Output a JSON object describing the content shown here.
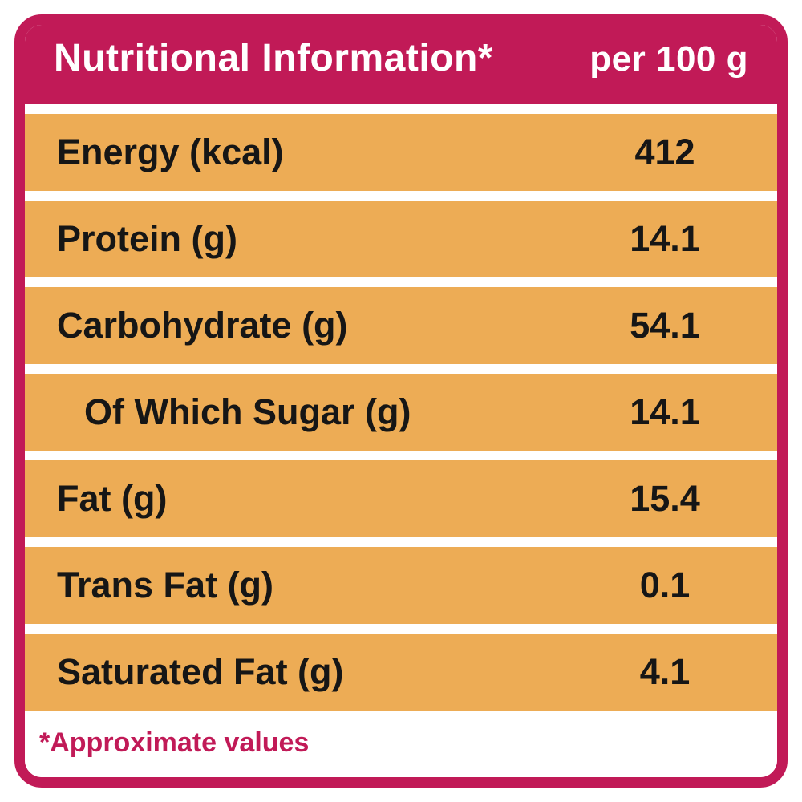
{
  "label": {
    "title": "Nutritional Information*",
    "per_quantity": "per 100 g",
    "footnote": "*Approximate values",
    "colors": {
      "accent": "#c11a57",
      "row_background": "#edac55",
      "header_text": "#ffffff",
      "row_text": "#161616"
    },
    "rows": [
      {
        "name": "Energy (kcal)",
        "value": "412"
      },
      {
        "name": "Protein (g)",
        "value": "14.1"
      },
      {
        "name": "Carbohydrate (g)",
        "value": "54.1"
      },
      {
        "name": "Of Which Sugar (g)",
        "value": "14.1"
      },
      {
        "name": "Fat (g)",
        "value": "15.4"
      },
      {
        "name": "Trans Fat (g)",
        "value": "0.1"
      },
      {
        "name": "Saturated Fat (g)",
        "value": "4.1"
      }
    ]
  }
}
